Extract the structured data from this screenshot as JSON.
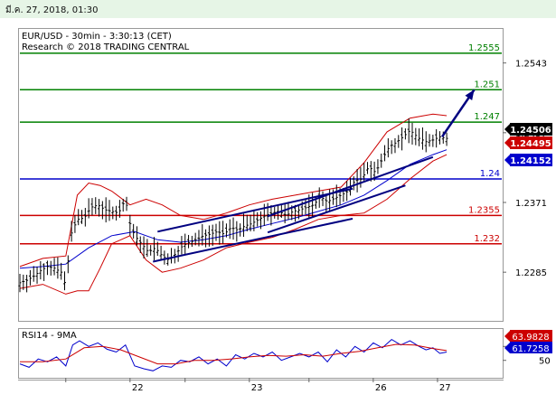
{
  "header": {
    "datetime": "มี.ค. 27, 2018, 01:30"
  },
  "chart_data": [
    {
      "type": "candlestick",
      "title": "EUR/USD - 30min - 3:30:13 (CET)",
      "subtitle": "Research © 2018 TRADING CENTRAL",
      "y_ticks": [
        "1.2543",
        "1.2457",
        "1.2371",
        "1.2285"
      ],
      "x_ticks": [
        "22",
        "23",
        "26",
        "27"
      ],
      "ylim": [
        1.2225,
        1.2585
      ],
      "levels": [
        {
          "label": "1.2555",
          "value": 1.2555,
          "color": "#008000"
        },
        {
          "label": "1.251",
          "value": 1.251,
          "color": "#008000"
        },
        {
          "label": "1.247",
          "value": 1.247,
          "color": "#008000"
        },
        {
          "label": "1.24",
          "value": 1.24,
          "color": "#0000cc"
        },
        {
          "label": "1.2355",
          "value": 1.2355,
          "color": "#cc0000"
        },
        {
          "label": "1.232",
          "value": 1.232,
          "color": "#cc0000"
        }
      ],
      "price_tags": [
        {
          "label": "1.24506",
          "value": 1.24506,
          "bg": "#000000"
        },
        {
          "label": "1.24495",
          "value": 1.24495,
          "bg": "#cc0000"
        },
        {
          "label": "1.24152",
          "value": 1.24152,
          "bg": "#0000cc"
        }
      ],
      "price_path": [
        [
          0,
          1.2272
        ],
        [
          3,
          1.2275
        ],
        [
          6,
          1.228
        ],
        [
          9,
          1.2287
        ],
        [
          12,
          1.2292
        ],
        [
          15,
          1.229
        ],
        [
          18,
          1.2285
        ],
        [
          20,
          1.2268
        ],
        [
          22,
          1.233
        ],
        [
          25,
          1.235
        ],
        [
          28,
          1.2352
        ],
        [
          31,
          1.2365
        ],
        [
          34,
          1.2368
        ],
        [
          37,
          1.2362
        ],
        [
          40,
          1.236
        ],
        [
          43,
          1.2358
        ],
        [
          46,
          1.2375
        ],
        [
          48,
          1.2345
        ],
        [
          50,
          1.233
        ],
        [
          53,
          1.232
        ],
        [
          56,
          1.231
        ],
        [
          59,
          1.2315
        ],
        [
          62,
          1.2305
        ],
        [
          65,
          1.23
        ],
        [
          68,
          1.2308
        ],
        [
          71,
          1.2318
        ],
        [
          74,
          1.2322
        ],
        [
          77,
          1.2325
        ],
        [
          80,
          1.233
        ],
        [
          83,
          1.2332
        ],
        [
          86,
          1.2335
        ],
        [
          89,
          1.2332
        ],
        [
          92,
          1.234
        ],
        [
          95,
          1.2337
        ],
        [
          98,
          1.2342
        ],
        [
          101,
          1.2345
        ],
        [
          104,
          1.235
        ],
        [
          107,
          1.2355
        ],
        [
          110,
          1.2358
        ],
        [
          113,
          1.236
        ],
        [
          116,
          1.2355
        ],
        [
          119,
          1.236
        ],
        [
          122,
          1.2362
        ],
        [
          125,
          1.2365
        ],
        [
          128,
          1.2368
        ],
        [
          131,
          1.2378
        ],
        [
          134,
          1.2372
        ],
        [
          137,
          1.2376
        ],
        [
          140,
          1.238
        ],
        [
          143,
          1.2385
        ],
        [
          146,
          1.2398
        ],
        [
          149,
          1.24
        ],
        [
          152,
          1.2415
        ],
        [
          155,
          1.2408
        ],
        [
          158,
          1.2425
        ],
        [
          161,
          1.244
        ],
        [
          164,
          1.2445
        ],
        [
          167,
          1.2452
        ],
        [
          170,
          1.246
        ],
        [
          172,
          1.2455
        ],
        [
          174,
          1.245
        ],
        [
          177,
          1.2446
        ],
        [
          180,
          1.2448
        ],
        [
          183,
          1.2452
        ],
        [
          186,
          1.245
        ]
      ],
      "bollinger_upper": [
        [
          0,
          1.2292
        ],
        [
          10,
          1.2302
        ],
        [
          20,
          1.2305
        ],
        [
          25,
          1.238
        ],
        [
          30,
          1.2395
        ],
        [
          35,
          1.2392
        ],
        [
          40,
          1.2385
        ],
        [
          48,
          1.2368
        ],
        [
          55,
          1.2375
        ],
        [
          62,
          1.2368
        ],
        [
          70,
          1.2355
        ],
        [
          80,
          1.235
        ],
        [
          90,
          1.2358
        ],
        [
          100,
          1.2368
        ],
        [
          110,
          1.2375
        ],
        [
          120,
          1.238
        ],
        [
          130,
          1.2385
        ],
        [
          140,
          1.239
        ],
        [
          150,
          1.242
        ],
        [
          160,
          1.2458
        ],
        [
          170,
          1.2475
        ],
        [
          180,
          1.248
        ],
        [
          186,
          1.2478
        ]
      ],
      "bollinger_lower": [
        [
          0,
          1.2265
        ],
        [
          10,
          1.227
        ],
        [
          20,
          1.2258
        ],
        [
          25,
          1.2262
        ],
        [
          30,
          1.2262
        ],
        [
          35,
          1.229
        ],
        [
          40,
          1.232
        ],
        [
          48,
          1.233
        ],
        [
          55,
          1.23
        ],
        [
          62,
          1.2285
        ],
        [
          70,
          1.229
        ],
        [
          80,
          1.23
        ],
        [
          90,
          1.2315
        ],
        [
          100,
          1.2322
        ],
        [
          110,
          1.2328
        ],
        [
          120,
          1.2338
        ],
        [
          130,
          1.235
        ],
        [
          140,
          1.2355
        ],
        [
          150,
          1.2358
        ],
        [
          160,
          1.2375
        ],
        [
          170,
          1.24
        ],
        [
          180,
          1.2422
        ],
        [
          186,
          1.243
        ]
      ],
      "moving_average": [
        [
          0,
          1.229
        ],
        [
          10,
          1.2292
        ],
        [
          20,
          1.2295
        ],
        [
          30,
          1.2315
        ],
        [
          40,
          1.233
        ],
        [
          50,
          1.2335
        ],
        [
          60,
          1.2325
        ],
        [
          70,
          1.2322
        ],
        [
          80,
          1.2325
        ],
        [
          90,
          1.233
        ],
        [
          100,
          1.2338
        ],
        [
          110,
          1.2345
        ],
        [
          120,
          1.2352
        ],
        [
          130,
          1.236
        ],
        [
          140,
          1.2368
        ],
        [
          150,
          1.238
        ],
        [
          160,
          1.2398
        ],
        [
          170,
          1.2418
        ],
        [
          180,
          1.243
        ],
        [
          186,
          1.2436
        ]
      ],
      "channel_top": [
        [
          60,
          1.2335
        ],
        [
          145,
          1.2388
        ]
      ],
      "channel_bottom": [
        [
          58,
          1.2298
        ],
        [
          145,
          1.2351
        ]
      ],
      "channel2_top": [
        [
          108,
          1.2354
        ],
        [
          180,
          1.2427
        ]
      ],
      "channel2_bottom": [
        [
          108,
          1.2334
        ],
        [
          168,
          1.2392
        ]
      ],
      "projection_arrow": [
        [
          184,
          1.2452
        ],
        [
          198,
          1.251
        ]
      ],
      "x_range": [
        0,
        210
      ]
    },
    {
      "type": "line",
      "title": "RSI14 - 9MA",
      "y_ticks": [
        "70",
        "50"
      ],
      "ylim": [
        25,
        95
      ],
      "value_tags": [
        {
          "label": "63.9828",
          "value": 63.98,
          "bg": "#cc0000"
        },
        {
          "label": "61.7258",
          "value": 61.73,
          "bg": "#0000cc"
        }
      ],
      "series": [
        {
          "color": "#0000cc",
          "values": [
            [
              0,
              45
            ],
            [
              4,
              40
            ],
            [
              8,
              52
            ],
            [
              12,
              48
            ],
            [
              16,
              55
            ],
            [
              20,
              42
            ],
            [
              23,
              72
            ],
            [
              26,
              78
            ],
            [
              30,
              70
            ],
            [
              34,
              75
            ],
            [
              38,
              66
            ],
            [
              42,
              62
            ],
            [
              46,
              72
            ],
            [
              50,
              42
            ],
            [
              54,
              38
            ],
            [
              58,
              35
            ],
            [
              62,
              42
            ],
            [
              66,
              40
            ],
            [
              70,
              50
            ],
            [
              74,
              48
            ],
            [
              78,
              55
            ],
            [
              82,
              45
            ],
            [
              86,
              52
            ],
            [
              90,
              42
            ],
            [
              94,
              58
            ],
            [
              98,
              52
            ],
            [
              102,
              60
            ],
            [
              106,
              55
            ],
            [
              110,
              62
            ],
            [
              114,
              50
            ],
            [
              118,
              55
            ],
            [
              122,
              60
            ],
            [
              126,
              55
            ],
            [
              130,
              62
            ],
            [
              134,
              48
            ],
            [
              138,
              65
            ],
            [
              142,
              55
            ],
            [
              146,
              70
            ],
            [
              150,
              62
            ],
            [
              154,
              75
            ],
            [
              158,
              68
            ],
            [
              162,
              80
            ],
            [
              166,
              72
            ],
            [
              170,
              78
            ],
            [
              174,
              70
            ],
            [
              177,
              65
            ],
            [
              180,
              68
            ],
            [
              183,
              60
            ],
            [
              186,
              62
            ]
          ]
        },
        {
          "color": "#cc0000",
          "values": [
            [
              0,
              48
            ],
            [
              10,
              48
            ],
            [
              20,
              52
            ],
            [
              28,
              68
            ],
            [
              36,
              70
            ],
            [
              44,
              65
            ],
            [
              52,
              55
            ],
            [
              60,
              45
            ],
            [
              68,
              45
            ],
            [
              76,
              50
            ],
            [
              84,
              50
            ],
            [
              92,
              52
            ],
            [
              100,
              55
            ],
            [
              108,
              57
            ],
            [
              116,
              56
            ],
            [
              124,
              58
            ],
            [
              132,
              56
            ],
            [
              140,
              60
            ],
            [
              148,
              63
            ],
            [
              156,
              68
            ],
            [
              164,
              73
            ],
            [
              172,
              72
            ],
            [
              180,
              67
            ],
            [
              186,
              64
            ]
          ]
        }
      ]
    }
  ]
}
